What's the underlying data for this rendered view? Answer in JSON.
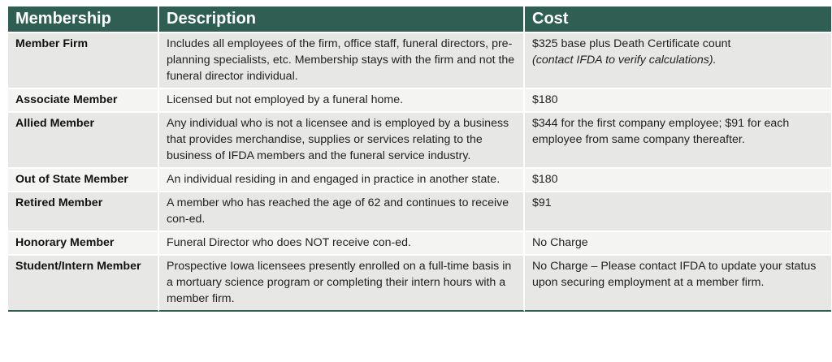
{
  "table": {
    "headers": [
      "Membership",
      "Description",
      "Cost"
    ],
    "rows": [
      {
        "membership": "Member Firm",
        "description": "Includes all employees of the firm, office staff, funeral directors, pre-planning specialists, etc. Membership stays with the firm and not the funeral director individual.",
        "cost": "$325 base plus Death Certificate count",
        "cost_note": "(contact IFDA to verify calculations)."
      },
      {
        "membership": "Associate Member",
        "description": "Licensed but not employed by a funeral home.",
        "cost": "$180"
      },
      {
        "membership": "Allied Member",
        "description": "Any individual who is not a licensee and is employed by a business that provides merchandise, supplies or services relating to the business of IFDA members and the funeral service industry.",
        "cost": "$344 for the first company employee; $91 for each employee from same company thereafter."
      },
      {
        "membership": "Out of State Member",
        "description": "An individual residing in and engaged in practice in another state.",
        "cost": "$180"
      },
      {
        "membership": "Retired Member",
        "description": "A member who has reached the age of 62 and continues to receive con-ed.",
        "cost": "$91"
      },
      {
        "membership": "Honorary Member",
        "description": "Funeral Director who does NOT receive con-ed.",
        "cost": "No Charge"
      },
      {
        "membership": "Student/Intern Member",
        "description": "Prospective Iowa licensees presently enrolled on a full-time basis in a mortuary science program or completing their intern hours with a member firm.",
        "cost": "No Charge – Please contact IFDA to update your status upon securing employment at a member firm."
      }
    ]
  }
}
